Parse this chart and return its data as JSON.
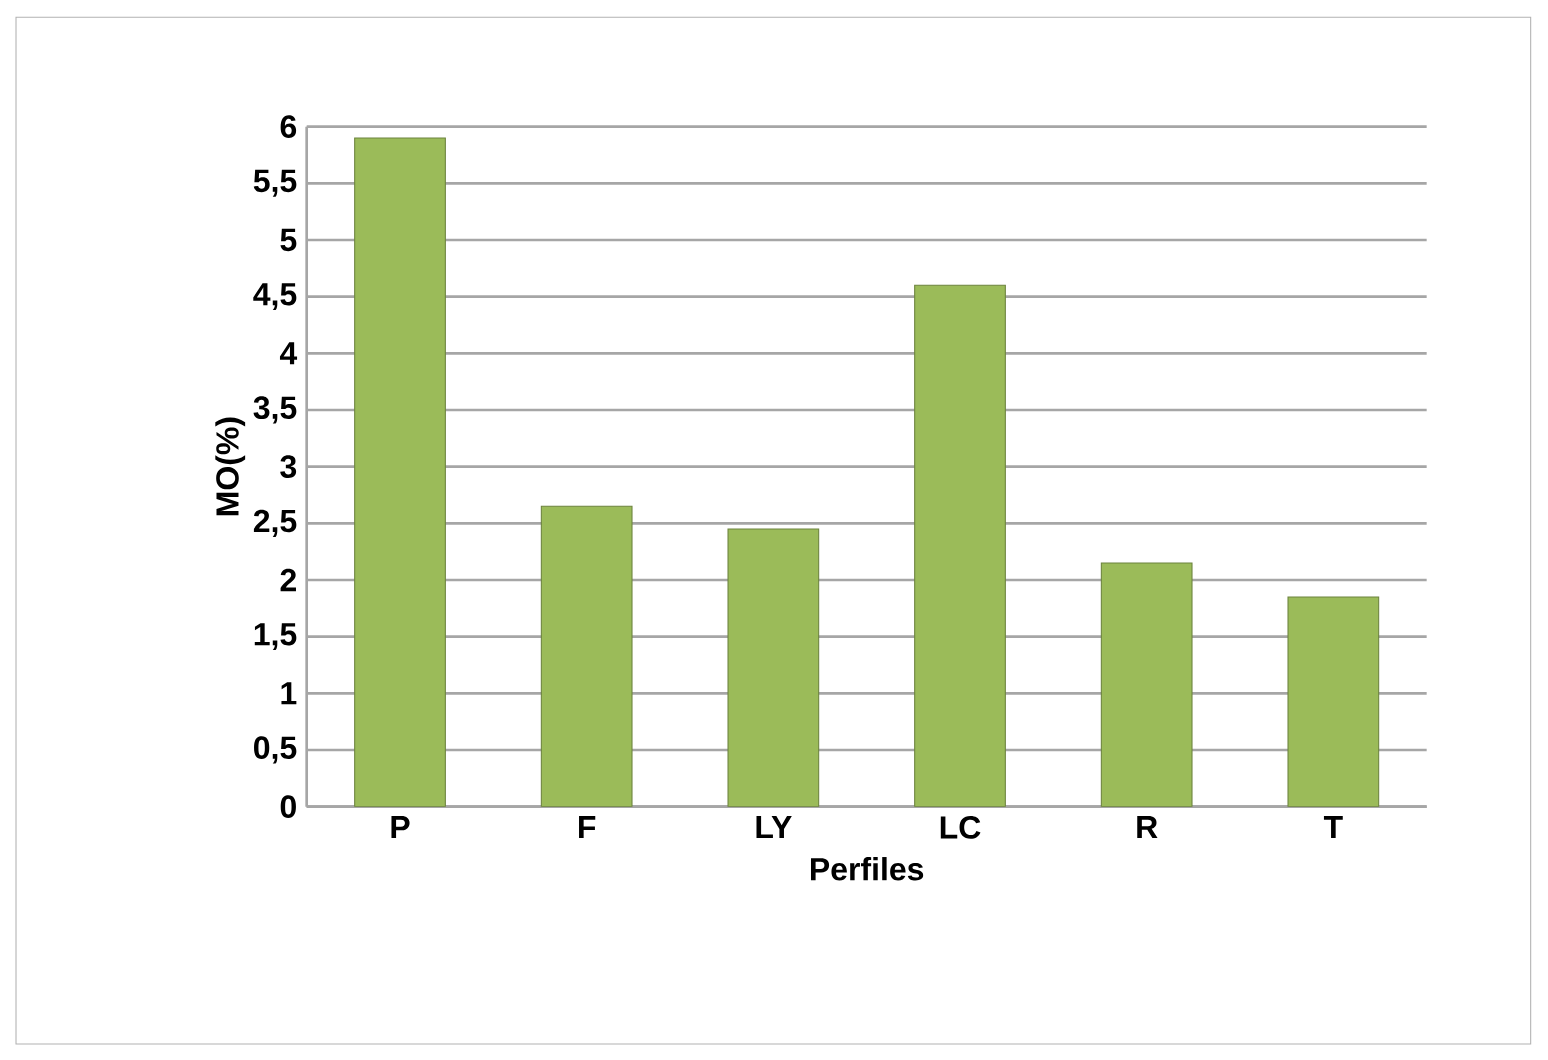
{
  "chart_data": {
    "type": "bar",
    "xlabel": "Perfiles",
    "ylabel": "MO(%)",
    "categories": [
      "P",
      "F",
      "LY",
      "LC",
      "R",
      "T"
    ],
    "values": [
      5.9,
      2.65,
      2.45,
      4.6,
      2.15,
      1.85
    ],
    "color": "#9bbb59",
    "ylim": [
      0,
      6
    ],
    "yticks": [
      0,
      {
        "value": 0.5,
        "label": "0,5"
      },
      1,
      {
        "value": 1.5,
        "label": "1,5"
      },
      2,
      {
        "value": 2.5,
        "label": "2,5"
      },
      3,
      {
        "value": 3.5,
        "label": "3,5"
      },
      4,
      {
        "value": 4.5,
        "label": "4,5"
      },
      5,
      {
        "value": 5.5,
        "label": "5,5"
      },
      6
    ],
    "grid": "y"
  }
}
